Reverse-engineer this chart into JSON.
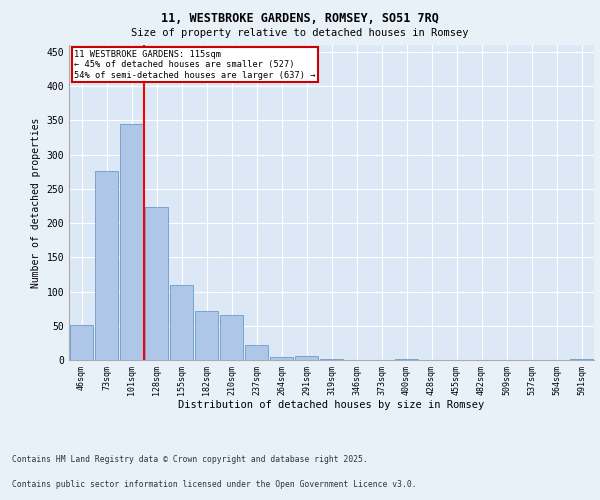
{
  "title1": "11, WESTBROKE GARDENS, ROMSEY, SO51 7RQ",
  "title2": "Size of property relative to detached houses in Romsey",
  "xlabel": "Distribution of detached houses by size in Romsey",
  "ylabel": "Number of detached properties",
  "categories": [
    "46sqm",
    "73sqm",
    "101sqm",
    "128sqm",
    "155sqm",
    "182sqm",
    "210sqm",
    "237sqm",
    "264sqm",
    "291sqm",
    "319sqm",
    "346sqm",
    "373sqm",
    "400sqm",
    "428sqm",
    "455sqm",
    "482sqm",
    "509sqm",
    "537sqm",
    "564sqm",
    "591sqm"
  ],
  "values": [
    51,
    276,
    344,
    224,
    110,
    72,
    65,
    22,
    5,
    6,
    1,
    0,
    0,
    1,
    0,
    0,
    0,
    0,
    0,
    0,
    2
  ],
  "bar_color": "#aec6e8",
  "bar_edge_color": "#5a8fc0",
  "vline_x": 2.5,
  "annotation_line1": "11 WESTBROKE GARDENS: 115sqm",
  "annotation_line2": "← 45% of detached houses are smaller (527)",
  "annotation_line3": "54% of semi-detached houses are larger (637) →",
  "box_color": "#cc0000",
  "ylim": [
    0,
    460
  ],
  "yticks": [
    0,
    50,
    100,
    150,
    200,
    250,
    300,
    350,
    400,
    450
  ],
  "footer1": "Contains HM Land Registry data © Crown copyright and database right 2025.",
  "footer2": "Contains public sector information licensed under the Open Government Licence v3.0.",
  "bg_color": "#e8f0f8",
  "plot_bg_color": "#dce8f5"
}
